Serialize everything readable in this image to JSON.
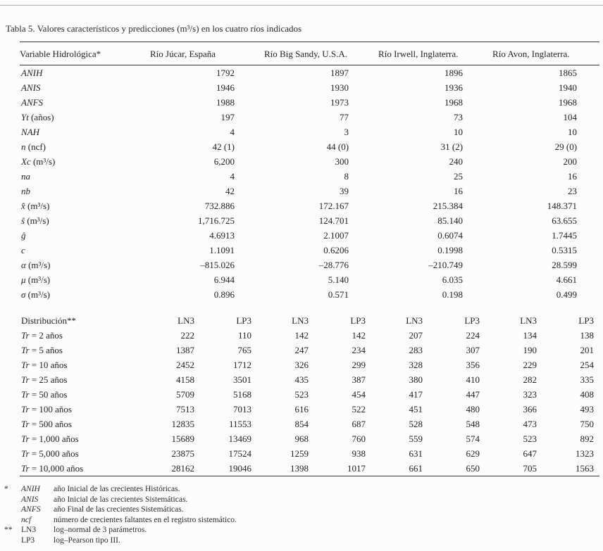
{
  "title": "Tabla 5. Valores característicos y predicciones (m³/s) en los cuatro ríos indicados",
  "table": {
    "header": {
      "variable_col": "Variable Hidrológica*",
      "rivers": [
        "Río Júcar, España",
        "Río Big Sandy, U.S.A.",
        "Río Irwell, Inglaterra.",
        "Río Avon, Inglaterra."
      ]
    },
    "characteristics": [
      {
        "label": "ANIH",
        "values": [
          "1792",
          "1897",
          "1896",
          "1865"
        ]
      },
      {
        "label": "ANIS",
        "values": [
          "1946",
          "1930",
          "1936",
          "1940"
        ]
      },
      {
        "label": "ANFS",
        "values": [
          "1988",
          "1973",
          "1968",
          "1968"
        ]
      },
      {
        "label": "Yt (años)",
        "values": [
          "197",
          "77",
          "73",
          "104"
        ]
      },
      {
        "label": "NAH",
        "values": [
          "4",
          "3",
          "10",
          "10"
        ]
      },
      {
        "label": "n (ncf)",
        "values": [
          "42 (1)",
          "44 (0)",
          "31 (2)",
          "29 (0)"
        ]
      },
      {
        "label": "Xc (m³/s)",
        "values": [
          "6,200",
          "300",
          "240",
          "200"
        ]
      },
      {
        "label": "na",
        "values": [
          "4",
          "8",
          "25",
          "16"
        ]
      },
      {
        "label": "nb",
        "values": [
          "42",
          "39",
          "16",
          "23"
        ]
      },
      {
        "label": "x̂ (m³/s)",
        "values": [
          "732.886",
          "172.167",
          "215.384",
          "148.371"
        ]
      },
      {
        "label": "ŝ (m³/s)",
        "values": [
          "1,716.725",
          "124.701",
          "85.140",
          "63.655"
        ]
      },
      {
        "label": "ĝ",
        "values": [
          "4.6913",
          "2.1007",
          "0.6074",
          "1.7445"
        ]
      },
      {
        "label": "c",
        "values": [
          "1.1091",
          "0.6206",
          "0.1998",
          "0.5315"
        ]
      },
      {
        "label": "α (m³/s)",
        "values": [
          "–815.026",
          "–28.776",
          "–210.749",
          "28.599"
        ]
      },
      {
        "label": "μ (m³/s)",
        "values": [
          "6.944",
          "5.140",
          "6.035",
          "4.661"
        ]
      },
      {
        "label": "σ (m³/s)",
        "values": [
          "0.896",
          "0.571",
          "0.198",
          "0.499"
        ]
      }
    ],
    "distribution_header": {
      "label": "Distribución**",
      "subcols": [
        "LN3",
        "LP3"
      ]
    },
    "predictions": [
      {
        "label": "Tr = 2 años",
        "values": [
          [
            "222",
            "110"
          ],
          [
            "142",
            "142"
          ],
          [
            "207",
            "224"
          ],
          [
            "134",
            "138"
          ]
        ]
      },
      {
        "label": "Tr = 5 años",
        "values": [
          [
            "1387",
            "765"
          ],
          [
            "247",
            "234"
          ],
          [
            "283",
            "307"
          ],
          [
            "190",
            "201"
          ]
        ]
      },
      {
        "label": "Tr = 10 años",
        "values": [
          [
            "2452",
            "1712"
          ],
          [
            "326",
            "299"
          ],
          [
            "328",
            "356"
          ],
          [
            "229",
            "254"
          ]
        ]
      },
      {
        "label": "Tr = 25 años",
        "values": [
          [
            "4158",
            "3501"
          ],
          [
            "435",
            "387"
          ],
          [
            "380",
            "410"
          ],
          [
            "282",
            "335"
          ]
        ]
      },
      {
        "label": "Tr = 50 años",
        "values": [
          [
            "5709",
            "5168"
          ],
          [
            "523",
            "454"
          ],
          [
            "417",
            "447"
          ],
          [
            "323",
            "408"
          ]
        ]
      },
      {
        "label": "Tr = 100 años",
        "values": [
          [
            "7513",
            "7013"
          ],
          [
            "616",
            "522"
          ],
          [
            "451",
            "480"
          ],
          [
            "366",
            "493"
          ]
        ]
      },
      {
        "label": "Tr = 500 años",
        "values": [
          [
            "12835",
            "11553"
          ],
          [
            "854",
            "687"
          ],
          [
            "528",
            "548"
          ],
          [
            "473",
            "750"
          ]
        ]
      },
      {
        "label": "Tr = 1,000 años",
        "values": [
          [
            "15689",
            "13469"
          ],
          [
            "968",
            "760"
          ],
          [
            "559",
            "574"
          ],
          [
            "523",
            "892"
          ]
        ]
      },
      {
        "label": "Tr = 5,000 años",
        "values": [
          [
            "23875",
            "17524"
          ],
          [
            "1259",
            "938"
          ],
          [
            "631",
            "629"
          ],
          [
            "647",
            "1323"
          ]
        ]
      },
      {
        "label": "Tr = 10,000 años",
        "values": [
          [
            "28162",
            "19046"
          ],
          [
            "1398",
            "1017"
          ],
          [
            "661",
            "650"
          ],
          [
            "705",
            "1563"
          ]
        ]
      }
    ]
  },
  "footnotes": [
    {
      "marker": "*",
      "term": "ANIH",
      "italic": true,
      "text": "año Inicial de las crecientes Históricas."
    },
    {
      "marker": "",
      "term": "ANIS",
      "italic": true,
      "text": "año Inicial de las crecientes Sistemáticas."
    },
    {
      "marker": "",
      "term": "ANFS",
      "italic": true,
      "text": "año Final de las crecientes Sistemáticas."
    },
    {
      "marker": "",
      "term": "ncf",
      "italic": true,
      "text": "número de crecientes faltantes en el registro sistemático."
    },
    {
      "marker": "**",
      "term": "LN3",
      "italic": false,
      "text": "log–normal de 3 parámetros."
    },
    {
      "marker": "",
      "term": "LP3",
      "italic": false,
      "text": "log–Pearson tipo III."
    }
  ]
}
